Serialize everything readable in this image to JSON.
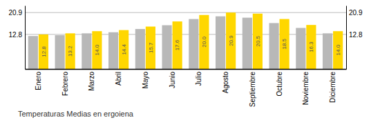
{
  "chart_data": {
    "type": "bar",
    "title": "Temperaturas Medias en ergoiena",
    "categories": [
      "Enero",
      "Febrero",
      "Marzo",
      "Abril",
      "Mayo",
      "Junio",
      "Julio",
      "Agosto",
      "Septiembre",
      "Octubre",
      "Noviembre",
      "Diciembre"
    ],
    "series": [
      {
        "color": "#B8B8B8",
        "values": [
          12.2,
          12.5,
          13.2,
          13.6,
          14.8,
          16.2,
          18.5,
          19.5,
          19.0,
          17.0,
          15.2,
          13.2
        ]
      },
      {
        "color": "#FFD700",
        "values": [
          12.8,
          13.2,
          14.0,
          14.4,
          15.7,
          17.6,
          20.0,
          20.9,
          20.5,
          18.5,
          16.3,
          14.0
        ],
        "data_labels": true,
        "value_labels": [
          "12.8",
          "13.2",
          "14.0",
          "14.4",
          "15.7",
          "17.6",
          "20.0",
          "20.9",
          "20.5",
          "18.5",
          "16.3",
          "14.0"
        ]
      }
    ],
    "ylim": [
      0,
      23.5
    ],
    "yticks": [
      12.8,
      20.9
    ],
    "y2lim": [
      0,
      23.5
    ],
    "y2ticks": [
      12.8,
      20.9
    ],
    "grid": true
  }
}
